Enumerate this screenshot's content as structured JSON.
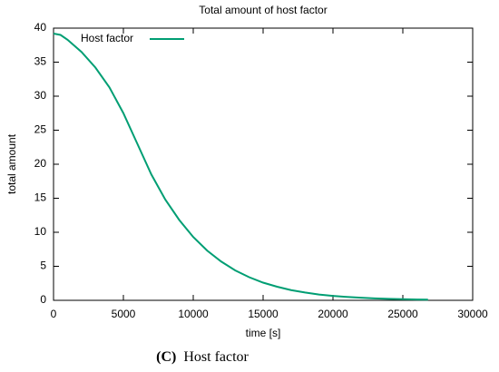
{
  "chart_data": {
    "type": "line",
    "title": "Total amount of host factor",
    "xlabel": "time [s]",
    "ylabel": "total amount",
    "x": [
      0,
      500,
      1000,
      2000,
      3000,
      4000,
      5000,
      6000,
      7000,
      8000,
      9000,
      10000,
      11000,
      12000,
      13000,
      14000,
      15000,
      16000,
      17000,
      18000,
      19000,
      20000,
      21000,
      22000,
      23000,
      24000,
      25000,
      26000,
      26800
    ],
    "series": [
      {
        "name": "Host factor",
        "color": "#009e73",
        "values": [
          39.2,
          39.0,
          38.3,
          36.5,
          34.2,
          31.3,
          27.5,
          23.0,
          18.5,
          14.8,
          11.8,
          9.3,
          7.3,
          5.7,
          4.4,
          3.4,
          2.6,
          2.0,
          1.5,
          1.15,
          0.85,
          0.65,
          0.5,
          0.38,
          0.28,
          0.21,
          0.16,
          0.12,
          0.1
        ]
      }
    ],
    "xlim": [
      0,
      30000
    ],
    "xticks": [
      0,
      5000,
      10000,
      15000,
      20000,
      25000,
      30000
    ],
    "ylim": [
      0,
      40
    ],
    "yticks": [
      0,
      5,
      10,
      15,
      20,
      25,
      30,
      35,
      40
    ],
    "grid": false,
    "legend": "top-left"
  },
  "caption": {
    "label": "(C)",
    "text": "Host factor"
  }
}
